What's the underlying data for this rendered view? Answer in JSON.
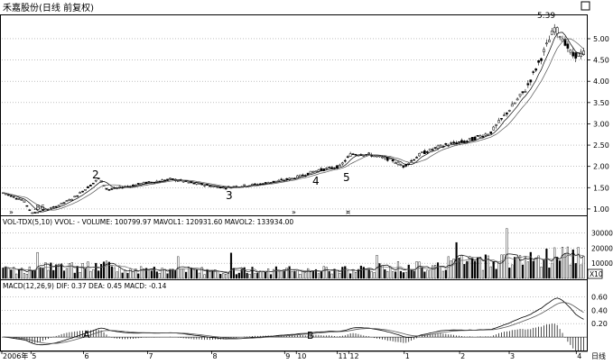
{
  "header": {
    "title": "禾嘉股份(日线 前复权)",
    "corner_box_label": "▢"
  },
  "price_axis": {
    "labels": [
      "5.00",
      "4.50",
      "4.00",
      "3.50",
      "3.00",
      "2.50",
      "2.00",
      "1.50",
      "1.00"
    ],
    "values": [
      5.0,
      4.5,
      4.0,
      3.5,
      3.0,
      2.5,
      2.0,
      1.5,
      1.0
    ],
    "range": [
      0.85,
      5.55
    ]
  },
  "price_annotations": {
    "high_label": "5.39",
    "low_label": ".86",
    "wave_marks": [
      "2",
      "3",
      "4",
      "5"
    ]
  },
  "volume_panel": {
    "header": "VOL-TDX(5,10)  VVOL: -   VOLUME: 100799.97  MAVOL1: 120931.60  MAVOL2: 133934.00",
    "axis_labels": [
      "30000",
      "20000",
      "10000"
    ],
    "axis_values": [
      30000,
      20000,
      10000
    ],
    "range": [
      0,
      34000
    ],
    "unit_box": "X10"
  },
  "macd_panel": {
    "header": "MACD(12,26,9)  DIF: 0.37  DEA: 0.45  MACD: -0.14",
    "axis_labels": [
      "0.60",
      "0.40",
      "0.20"
    ],
    "axis_values": [
      0.6,
      0.4,
      0.2
    ],
    "range": [
      -0.2,
      0.7
    ],
    "marks": [
      "A",
      "B"
    ]
  },
  "date_axis": {
    "labels": [
      "2006年",
      "5",
      "6",
      "7",
      "8",
      "9",
      "10",
      "11",
      "12",
      "1",
      "2",
      "3",
      "4"
    ],
    "right_label": "日线"
  },
  "colors": {
    "up": "#000000",
    "down": "#000000",
    "ma1": "#000000",
    "ma2": "#000000",
    "grid": "#888888"
  }
}
